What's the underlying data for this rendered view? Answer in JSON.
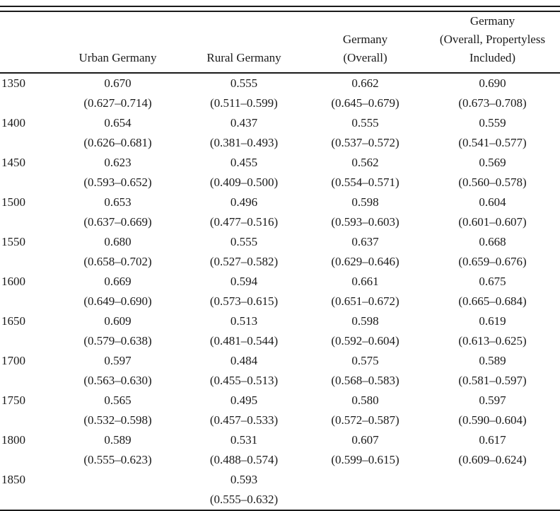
{
  "table": {
    "header_labels": [
      "",
      "Urban Germany",
      "Rural Germany",
      "Germany\n(Overall)",
      "Germany\n(Overall, Propertyless\nIncluded)"
    ],
    "rows": [
      {
        "year": "1350",
        "urban": "0.670",
        "urban_ci": "(0.627–0.714)",
        "rural": "0.555",
        "rural_ci": "(0.511–0.599)",
        "overall": "0.662",
        "overall_ci": "(0.645–0.679)",
        "prop": "0.690",
        "prop_ci": "(0.673–0.708)"
      },
      {
        "year": "1400",
        "urban": "0.654",
        "urban_ci": "(0.626–0.681)",
        "rural": "0.437",
        "rural_ci": "(0.381–0.493)",
        "overall": "0.555",
        "overall_ci": "(0.537–0.572)",
        "prop": "0.559",
        "prop_ci": "(0.541–0.577)"
      },
      {
        "year": "1450",
        "urban": "0.623",
        "urban_ci": "(0.593–0.652)",
        "rural": "0.455",
        "rural_ci": "(0.409–0.500)",
        "overall": "0.562",
        "overall_ci": "(0.554–0.571)",
        "prop": "0.569",
        "prop_ci": "(0.560–0.578)"
      },
      {
        "year": "1500",
        "urban": "0.653",
        "urban_ci": "(0.637–0.669)",
        "rural": "0.496",
        "rural_ci": "(0.477–0.516)",
        "overall": "0.598",
        "overall_ci": "(0.593–0.603)",
        "prop": "0.604",
        "prop_ci": "(0.601–0.607)"
      },
      {
        "year": "1550",
        "urban": "0.680",
        "urban_ci": "(0.658–0.702)",
        "rural": "0.555",
        "rural_ci": "(0.527–0.582)",
        "overall": "0.637",
        "overall_ci": "(0.629–0.646)",
        "prop": "0.668",
        "prop_ci": "(0.659–0.676)"
      },
      {
        "year": "1600",
        "urban": "0.669",
        "urban_ci": "(0.649–0.690)",
        "rural": "0.594",
        "rural_ci": "(0.573–0.615)",
        "overall": "0.661",
        "overall_ci": "(0.651–0.672)",
        "prop": "0.675",
        "prop_ci": "(0.665–0.684)"
      },
      {
        "year": "1650",
        "urban": "0.609",
        "urban_ci": "(0.579–0.638)",
        "rural": "0.513",
        "rural_ci": "(0.481–0.544)",
        "overall": "0.598",
        "overall_ci": "(0.592–0.604)",
        "prop": "0.619",
        "prop_ci": "(0.613–0.625)"
      },
      {
        "year": "1700",
        "urban": "0.597",
        "urban_ci": "(0.563–0.630)",
        "rural": "0.484",
        "rural_ci": "(0.455–0.513)",
        "overall": "0.575",
        "overall_ci": "(0.568–0.583)",
        "prop": "0.589",
        "prop_ci": "(0.581–0.597)"
      },
      {
        "year": "1750",
        "urban": "0.565",
        "urban_ci": "(0.532–0.598)",
        "rural": "0.495",
        "rural_ci": "(0.457–0.533)",
        "overall": "0.580",
        "overall_ci": "(0.572–0.587)",
        "prop": "0.597",
        "prop_ci": "(0.590–0.604)"
      },
      {
        "year": "1800",
        "urban": "0.589",
        "urban_ci": "(0.555–0.623)",
        "rural": "0.531",
        "rural_ci": "(0.488–0.574)",
        "overall": "0.607",
        "overall_ci": "(0.599–0.615)",
        "prop": "0.617",
        "prop_ci": "(0.609–0.624)"
      },
      {
        "year": "1850",
        "urban": "",
        "urban_ci": "",
        "rural": "0.593",
        "rural_ci": "(0.555–0.632)",
        "overall": "",
        "overall_ci": "",
        "prop": "",
        "prop_ci": ""
      }
    ]
  }
}
